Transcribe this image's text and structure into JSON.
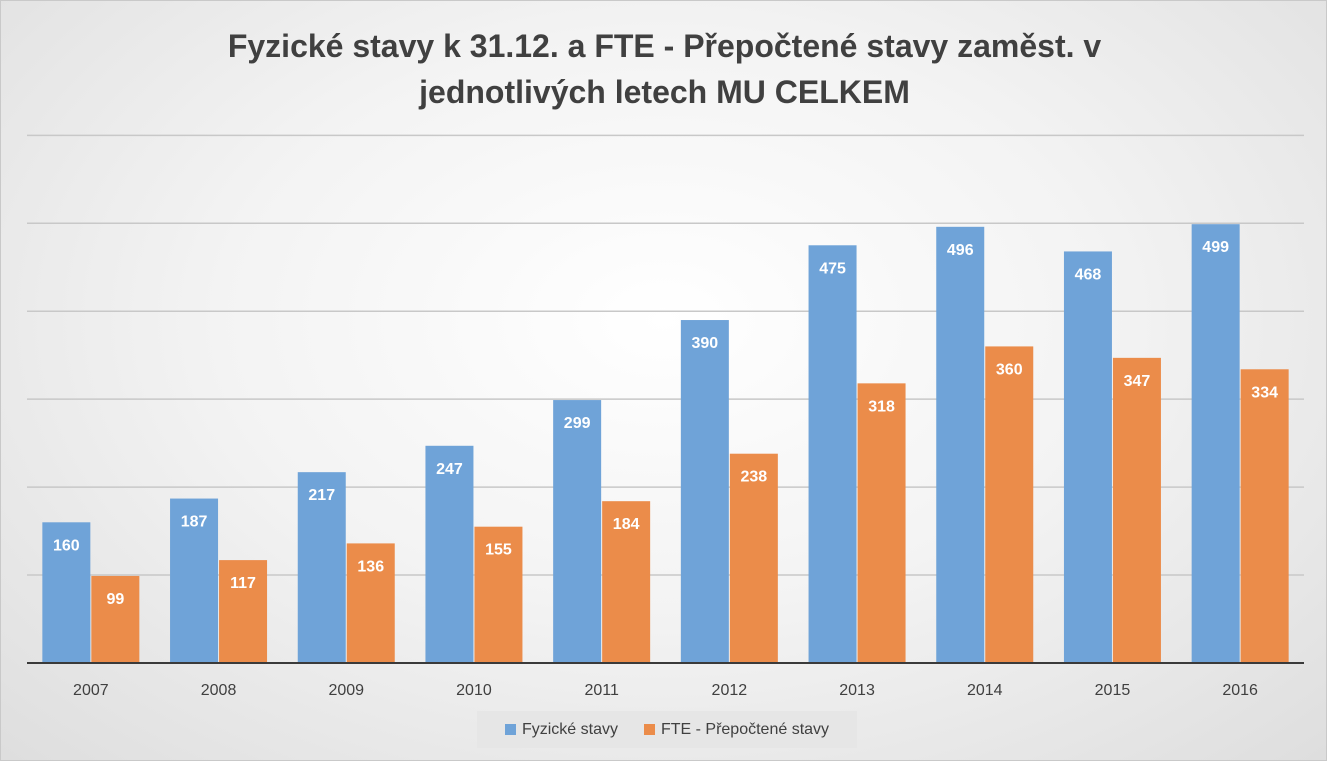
{
  "chart_data": {
    "type": "bar",
    "title": "Fyzické stavy k 31.12. a FTE - Přepočtené stavy zaměst. v jednotlivých letech MU CELKEM",
    "title_lines": [
      "Fyzické stavy k 31.12. a FTE - Přepočtené stavy zaměst. v",
      "jednotlivých letech MU CELKEM"
    ],
    "xlabel": "",
    "ylabel": "",
    "categories": [
      "2007",
      "2008",
      "2009",
      "2010",
      "2011",
      "2012",
      "2013",
      "2014",
      "2015",
      "2016"
    ],
    "series": [
      {
        "name": "Fyzické stavy",
        "color": "#6fa3d8",
        "values": [
          160,
          187,
          217,
          247,
          299,
          390,
          475,
          496,
          468,
          499
        ]
      },
      {
        "name": "FTE - Přepočtené stavy",
        "color": "#eb8c4a",
        "values": [
          99,
          117,
          136,
          155,
          184,
          238,
          318,
          360,
          347,
          334
        ]
      }
    ],
    "ylim": [
      0,
      600
    ],
    "gridlines": [
      100,
      200,
      300,
      400,
      500,
      600
    ],
    "grid": true,
    "data_labels": true,
    "legend": "bottom"
  }
}
